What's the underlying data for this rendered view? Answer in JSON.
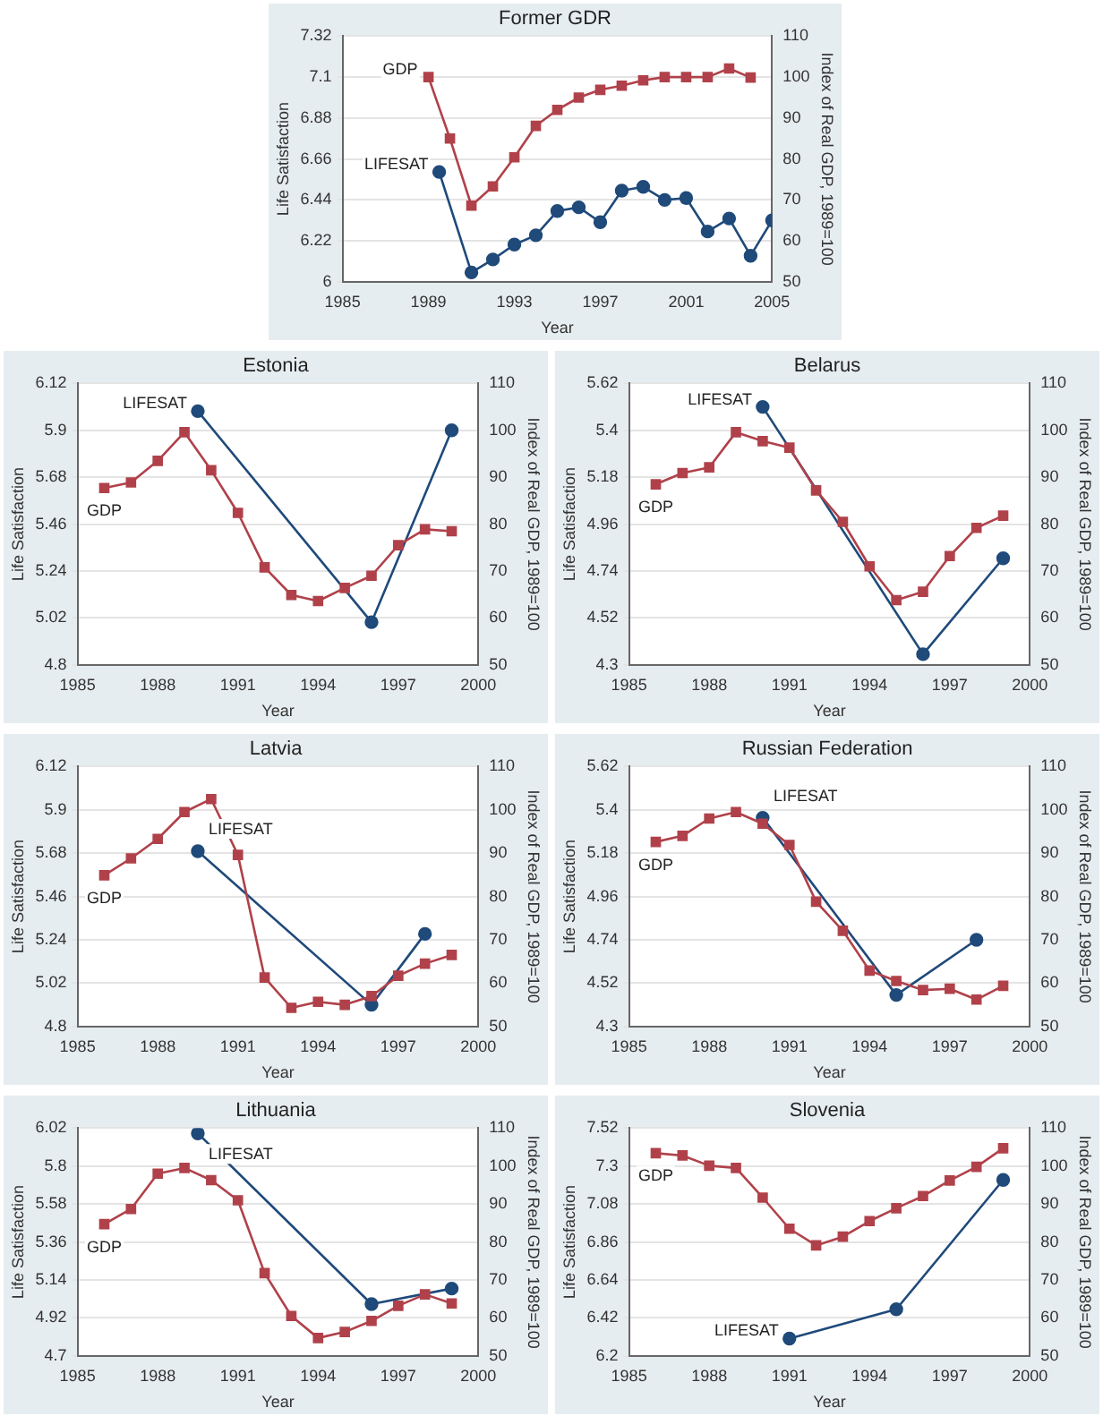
{
  "chart_data": [
    {
      "type": "line",
      "title": "Former GDR",
      "xlabel": "Year",
      "ylabel": "Life Satisfaction",
      "y2label": "Index of Real GDP, 1989=100",
      "xlim": [
        1985,
        2005
      ],
      "xticks": [
        1985,
        1989,
        1993,
        1997,
        2001,
        2005
      ],
      "ylim": [
        6,
        7.32
      ],
      "yticks": [
        6,
        6.22,
        6.44,
        6.66,
        6.88,
        7.1,
        7.32
      ],
      "y2lim": [
        50,
        110
      ],
      "y2ticks": [
        50,
        60,
        70,
        80,
        90,
        100,
        110
      ],
      "grid": "y",
      "legend": false,
      "series": [
        {
          "name": "GDP",
          "color": "#b0414a",
          "axis": "y2",
          "marker": "square",
          "x": [
            1989,
            1990,
            1991,
            1992,
            1993,
            1994,
            1995,
            1996,
            1997,
            1998,
            1999,
            2000,
            2001,
            2002,
            2003,
            2004
          ],
          "values": [
            100,
            85,
            68.6,
            73.3,
            80.4,
            88.1,
            92,
            95,
            96.9,
            97.9,
            99.2,
            100,
            100,
            100,
            102.1,
            99.9
          ]
        },
        {
          "name": "LIFESAT",
          "color": "#1f4a7a",
          "marker": "circle",
          "x": [
            1989.5,
            1991,
            1992,
            1993,
            1994,
            1995,
            1996,
            1997,
            1998,
            1999,
            2000,
            2001,
            2002,
            2003,
            2004,
            2005
          ],
          "values": [
            6.59,
            6.05,
            6.12,
            6.2,
            6.25,
            6.38,
            6.4,
            6.32,
            6.49,
            6.51,
            6.44,
            6.45,
            6.27,
            6.34,
            6.14,
            6.33
          ]
        }
      ]
    },
    {
      "type": "line",
      "title": "Estonia",
      "xlabel": "Year",
      "ylabel": "Life Satisfaction",
      "y2label": "Index of Real GDP, 1989=100",
      "xlim": [
        1985,
        2000
      ],
      "xticks": [
        1985,
        1988,
        1991,
        1994,
        1997,
        2000
      ],
      "ylim": [
        4.8,
        6.12
      ],
      "yticks": [
        4.8,
        5.02,
        5.24,
        5.46,
        5.68,
        5.9,
        6.12
      ],
      "y2lim": [
        50,
        110
      ],
      "y2ticks": [
        50,
        60,
        70,
        80,
        90,
        100,
        110
      ],
      "grid": "y",
      "legend": false,
      "series": [
        {
          "name": "GDP",
          "color": "#b0414a",
          "axis": "y2",
          "marker": "square",
          "x": [
            1986,
            1987,
            1988,
            1989,
            1990,
            1991,
            1992,
            1993,
            1994,
            1995,
            1996,
            1997,
            1998,
            1999
          ],
          "values": [
            87.7,
            88.9,
            93.5,
            99.6,
            91.5,
            82.4,
            70.8,
            64.9,
            63.6,
            66.4,
            69,
            75.5,
            78.9,
            78.5
          ]
        },
        {
          "name": "LIFESAT",
          "color": "#1f4a7a",
          "marker": "circle",
          "x": [
            1989.5,
            1996,
            1999
          ],
          "values": [
            5.99,
            5,
            5.9
          ]
        }
      ]
    },
    {
      "type": "line",
      "title": "Belarus",
      "xlabel": "Year",
      "ylabel": "Life Satisfaction",
      "y2label": "Index of Real GDP, 1989=100",
      "xlim": [
        1985,
        2000
      ],
      "xticks": [
        1985,
        1988,
        1991,
        1994,
        1997,
        2000
      ],
      "ylim": [
        4.3,
        5.62
      ],
      "yticks": [
        4.3,
        4.52,
        4.74,
        4.96,
        5.18,
        5.4,
        5.62
      ],
      "y2lim": [
        50,
        110
      ],
      "y2ticks": [
        50,
        60,
        70,
        80,
        90,
        100,
        110
      ],
      "grid": "y",
      "legend": false,
      "series": [
        {
          "name": "GDP",
          "color": "#b0414a",
          "axis": "y2",
          "marker": "square",
          "x": [
            1986,
            1987,
            1988,
            1989,
            1990,
            1991,
            1992,
            1993,
            1994,
            1995,
            1996,
            1997,
            1998,
            1999
          ],
          "values": [
            88.5,
            90.9,
            92.1,
            99.6,
            97.7,
            96.3,
            87.2,
            80.5,
            71,
            63.8,
            65.6,
            73.2,
            79.2,
            81.8
          ]
        },
        {
          "name": "LIFESAT",
          "color": "#1f4a7a",
          "marker": "circle",
          "x": [
            1990,
            1996,
            1999
          ],
          "values": [
            5.51,
            4.35,
            4.8
          ]
        }
      ]
    },
    {
      "type": "line",
      "title": "Latvia",
      "xlabel": "Year",
      "ylabel": "Life Satisfaction",
      "y2label": "Index of Real GDP, 1989=100",
      "xlim": [
        1985,
        2000
      ],
      "xticks": [
        1985,
        1988,
        1991,
        1994,
        1997,
        2000
      ],
      "ylim": [
        4.8,
        6.12
      ],
      "yticks": [
        4.8,
        5.02,
        5.24,
        5.46,
        5.68,
        5.9,
        6.12
      ],
      "y2lim": [
        50,
        110
      ],
      "y2ticks": [
        50,
        60,
        70,
        80,
        90,
        100,
        110
      ],
      "grid": "y",
      "legend": false,
      "series": [
        {
          "name": "GDP",
          "color": "#b0414a",
          "axis": "y2",
          "marker": "square",
          "x": [
            1986,
            1987,
            1988,
            1989,
            1990,
            1991,
            1992,
            1993,
            1994,
            1995,
            1996,
            1997,
            1998,
            1999
          ],
          "values": [
            84.9,
            88.8,
            93.3,
            99.5,
            102.5,
            89.6,
            61.3,
            54.3,
            55.7,
            55,
            57,
            61.7,
            64.5,
            66.5
          ]
        },
        {
          "name": "LIFESAT",
          "color": "#1f4a7a",
          "marker": "circle",
          "x": [
            1989.5,
            1996,
            1998
          ],
          "values": [
            5.69,
            4.91,
            5.27
          ]
        }
      ]
    },
    {
      "type": "line",
      "title": "Russian Federation",
      "xlabel": "Year",
      "ylabel": "Life Satisfaction",
      "y2label": "Index of Real GDP, 1989=100",
      "xlim": [
        1985,
        2000
      ],
      "xticks": [
        1985,
        1988,
        1991,
        1994,
        1997,
        2000
      ],
      "ylim": [
        4.3,
        5.62
      ],
      "yticks": [
        4.3,
        4.52,
        4.74,
        4.96,
        5.18,
        5.4,
        5.62
      ],
      "y2lim": [
        50,
        110
      ],
      "y2ticks": [
        50,
        60,
        70,
        80,
        90,
        100,
        110
      ],
      "grid": "y",
      "legend": false,
      "series": [
        {
          "name": "GDP",
          "color": "#b0414a",
          "axis": "y2",
          "marker": "square",
          "x": [
            1986,
            1987,
            1988,
            1989,
            1990,
            1991,
            1992,
            1993,
            1994,
            1995,
            1996,
            1997,
            1998,
            1999
          ],
          "values": [
            92.6,
            94,
            98,
            99.5,
            96.8,
            91.9,
            78.8,
            72.1,
            62.9,
            60.5,
            58.4,
            58.7,
            56.2,
            59.4
          ]
        },
        {
          "name": "LIFESAT",
          "color": "#1f4a7a",
          "marker": "circle",
          "x": [
            1990,
            1995,
            1998
          ],
          "values": [
            5.36,
            4.46,
            4.74
          ]
        }
      ]
    },
    {
      "type": "line",
      "title": "Lithuania",
      "xlabel": "Year",
      "ylabel": "Life Satisfaction",
      "y2label": "Index of Real GDP, 1989=100",
      "xlim": [
        1985,
        2000
      ],
      "xticks": [
        1985,
        1988,
        1991,
        1994,
        1997,
        2000
      ],
      "ylim": [
        4.7,
        6.02
      ],
      "yticks": [
        4.7,
        4.92,
        5.14,
        5.36,
        5.58,
        5.8,
        6.02
      ],
      "y2lim": [
        50,
        110
      ],
      "y2ticks": [
        50,
        60,
        70,
        80,
        90,
        100,
        110
      ],
      "grid": "y",
      "legend": false,
      "series": [
        {
          "name": "GDP",
          "color": "#b0414a",
          "axis": "y2",
          "marker": "square",
          "x": [
            1986,
            1987,
            1988,
            1989,
            1990,
            1991,
            1992,
            1993,
            1994,
            1995,
            1996,
            1997,
            1998,
            1999
          ],
          "values": [
            84.7,
            88.7,
            98,
            99.5,
            96.3,
            91,
            71.8,
            60.5,
            54.7,
            56.3,
            59.2,
            63.2,
            66.2,
            63.8
          ]
        },
        {
          "name": "LIFESAT",
          "color": "#1f4a7a",
          "marker": "circle",
          "x": [
            1989.5,
            1996,
            1999
          ],
          "values": [
            5.99,
            5,
            5.09
          ]
        }
      ]
    },
    {
      "type": "line",
      "title": "Slovenia",
      "xlabel": "Year",
      "ylabel": "Life Satisfaction",
      "y2label": "Index of Real GDP, 1989=100",
      "xlim": [
        1985,
        2000
      ],
      "xticks": [
        1985,
        1988,
        1991,
        1994,
        1997,
        2000
      ],
      "ylim": [
        6.2,
        7.52
      ],
      "yticks": [
        6.2,
        6.42,
        6.64,
        6.86,
        7.08,
        7.3,
        7.52
      ],
      "y2lim": [
        50,
        110
      ],
      "y2ticks": [
        50,
        60,
        70,
        80,
        90,
        100,
        110
      ],
      "grid": "y",
      "legend": false,
      "series": [
        {
          "name": "GDP",
          "color": "#b0414a",
          "axis": "y2",
          "marker": "square",
          "x": [
            1986,
            1987,
            1988,
            1989,
            1990,
            1991,
            1992,
            1993,
            1994,
            1995,
            1996,
            1997,
            1998,
            1999
          ],
          "values": [
            103.4,
            102.8,
            100.1,
            99.5,
            91.7,
            83.5,
            79.1,
            81.4,
            85.5,
            88.9,
            92.1,
            96.2,
            99.8,
            104.7
          ]
        },
        {
          "name": "LIFESAT",
          "color": "#1f4a7a",
          "marker": "circle",
          "x": [
            1991,
            1995,
            1999
          ],
          "values": [
            6.3,
            6.47,
            7.22
          ]
        }
      ]
    }
  ]
}
